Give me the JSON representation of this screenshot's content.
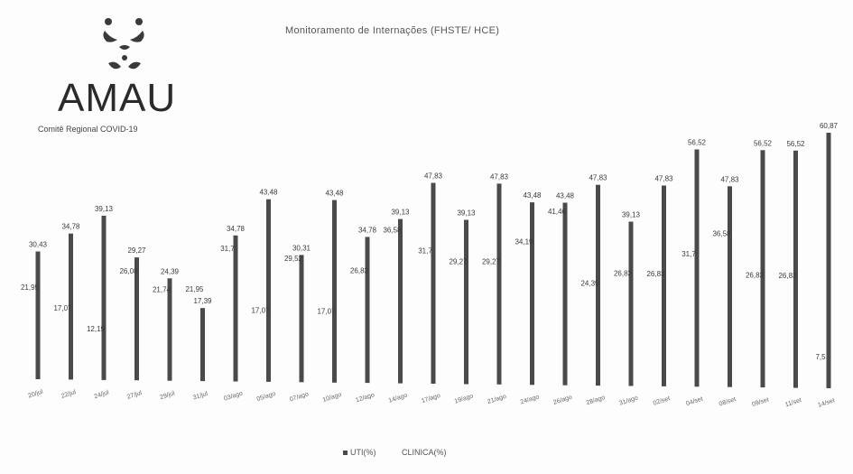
{
  "logo": {
    "name": "AMAU",
    "subtitle": "Comitê Regional COVID-19"
  },
  "chart_data": {
    "type": "bar",
    "title": "Monitoramento de Internações (FHSTE/ HCE)",
    "xlabel": "",
    "ylabel": "",
    "ylim": [
      0,
      65
    ],
    "grid": false,
    "legend_position": "bottom",
    "categories": [
      "20/jul",
      "22/jul",
      "24/jul",
      "27/jul",
      "29/jul",
      "31/jul",
      "03/ago",
      "05/ago",
      "07/ago",
      "10/ago",
      "12/ago",
      "14/ago",
      "17/ago",
      "19/ago",
      "21/ago",
      "24/ago",
      "26/ago",
      "28/ago",
      "31/ago",
      "02/set",
      "04/set",
      "08/set",
      "09/set",
      "11/set",
      "14/set"
    ],
    "series": [
      {
        "name": "UTI(%)",
        "color": "#4a4a4a",
        "values": [
          30.43,
          34.78,
          39.13,
          29.27,
          24.39,
          17.39,
          34.78,
          43.48,
          30.31,
          43.48,
          34.78,
          39.13,
          47.83,
          39.13,
          47.83,
          43.48,
          43.48,
          47.83,
          39.13,
          47.83,
          56.52,
          47.83,
          56.52,
          56.52,
          60.87
        ]
      },
      {
        "name": "CLINICA(%)",
        "color": "#4a4a4a",
        "values": [
          21.95,
          17.07,
          12.19,
          26.08,
          21.74,
          21.95,
          31.7,
          17.07,
          29.52,
          17.07,
          26.83,
          36.58,
          31.7,
          29.27,
          29.27,
          34.19,
          41.46,
          24.39,
          26.83,
          26.83,
          31.7,
          36.58,
          26.83,
          26.83,
          7.5
        ]
      }
    ],
    "value_labels": {
      "uti": [
        "30,43",
        "34,78",
        "39,13",
        "29,27",
        "24,39",
        "17,39",
        "34,78",
        "43,48",
        "30,31",
        "43,48",
        "34,78",
        "39,13",
        "47,83",
        "39,13",
        "47,83",
        "43,48",
        "43,48",
        "47,83",
        "39,13",
        "47,83",
        "56,52",
        "47,83",
        "56,52",
        "56,52",
        "60,87"
      ],
      "clinica": [
        "21,95",
        "17,07",
        "12,19",
        "26,08",
        "21,74",
        "21,95",
        "31,7",
        "17,07",
        "29,52",
        "17,07",
        "26,83",
        "36,58",
        "31,7",
        "29,27",
        "29,27",
        "34,19",
        "41,46",
        "24,39",
        "26,83",
        "26,83",
        "31,7",
        "36,58",
        "26,83",
        "26,83",
        "7,5"
      ]
    }
  }
}
